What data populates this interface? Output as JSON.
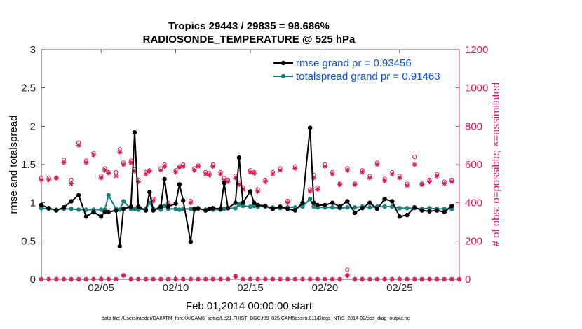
{
  "chart_data": {
    "type": "line",
    "title_line1": "Tropics 29443 / 29835 = 98.686%",
    "title_line2": "RADIOSONDE_TEMPERATURE @ 525 hPa",
    "xlabel": "Feb.01,2014 00:00:00 start",
    "ylabel_left": "rmse and totalspread",
    "ylabel_right": "# of obs: o=possible; ×=assimilated",
    "xlim": [
      1,
      29
    ],
    "ylim_left": [
      0,
      3
    ],
    "ylim_right": [
      0,
      1200
    ],
    "x_ticks": [
      5,
      10,
      15,
      20,
      25
    ],
    "x_tick_labels": [
      "02/05",
      "02/10",
      "02/15",
      "02/20",
      "02/25"
    ],
    "y_left_ticks": [
      0,
      0.5,
      1,
      1.5,
      2,
      2.5,
      3
    ],
    "y_left_tick_labels": [
      "0",
      "0.5",
      "1",
      "1.5",
      "2",
      "2.5",
      "3"
    ],
    "y_right_ticks": [
      0,
      200,
      400,
      600,
      800,
      1000,
      1200
    ],
    "y_right_tick_labels": [
      "0",
      "200",
      "400",
      "600",
      "800",
      "1000",
      "1200"
    ],
    "legend": [
      {
        "name": "rmse grand pr = 0.93456",
        "color": "#000000"
      },
      {
        "name": "totalspread grand pr = 0.91463",
        "color": "#1a8080"
      }
    ],
    "colors": {
      "rmse": "#000000",
      "spread": "#1a8080",
      "obs": "#d6185a"
    },
    "x": [
      1.0,
      1.5,
      2.0,
      2.5,
      3.0,
      3.5,
      4.0,
      4.5,
      5.0,
      5.25,
      5.5,
      6.0,
      6.25,
      6.5,
      7.0,
      7.25,
      7.5,
      8.0,
      8.25,
      8.5,
      9.0,
      9.25,
      9.5,
      10.0,
      10.25,
      10.5,
      11.0,
      11.25,
      11.5,
      12.0,
      12.25,
      12.5,
      13.0,
      13.25,
      13.5,
      14.0,
      14.25,
      14.5,
      15.0,
      15.25,
      15.5,
      16.0,
      16.5,
      17.0,
      17.5,
      18.0,
      18.5,
      19.0,
      19.25,
      19.5,
      20.0,
      20.5,
      21.0,
      21.5,
      22.0,
      22.5,
      23.0,
      23.5,
      24.0,
      24.5,
      25.0,
      25.5,
      26.0,
      26.5,
      27.0,
      27.5,
      28.0,
      28.5
    ],
    "series": [
      {
        "name": "rmse",
        "values": [
          0.97,
          0.93,
          0.9,
          0.94,
          1.02,
          1.1,
          0.82,
          0.88,
          0.82,
          0.88,
          0.88,
          0.9,
          0.43,
          0.92,
          0.95,
          1.92,
          0.95,
          0.9,
          1.14,
          0.9,
          0.95,
          1.31,
          0.95,
          0.99,
          1.24,
          1.03,
          0.49,
          0.92,
          0.93,
          0.9,
          0.92,
          0.93,
          0.92,
          1.26,
          0.93,
          1.0,
          1.59,
          1.0,
          1.15,
          1.0,
          0.97,
          0.96,
          0.92,
          0.95,
          0.92,
          0.9,
          1.0,
          1.98,
          1.0,
          0.97,
          0.97,
          1.0,
          0.95,
          1.02,
          0.87,
          0.93,
          1.0,
          0.92,
          1.05,
          1.02,
          0.82,
          0.84,
          0.94,
          0.9,
          0.89,
          0.9,
          0.88,
          0.96
        ]
      },
      {
        "name": "totalspread",
        "values": [
          0.93,
          0.92,
          0.91,
          0.92,
          0.92,
          0.91,
          0.91,
          0.91,
          0.91,
          0.91,
          1.1,
          0.92,
          0.91,
          1.02,
          0.92,
          0.92,
          0.91,
          0.92,
          1.0,
          0.92,
          0.91,
          0.96,
          0.92,
          0.92,
          0.91,
          0.92,
          0.92,
          0.91,
          0.92,
          0.91,
          0.92,
          0.91,
          0.91,
          0.92,
          0.93,
          0.93,
          0.98,
          0.96,
          0.95,
          0.96,
          0.95,
          0.95,
          0.94,
          0.93,
          0.94,
          0.94,
          0.95,
          1.05,
          0.95,
          0.94,
          0.94,
          0.94,
          0.93,
          0.94,
          0.94,
          0.95,
          0.94,
          0.95,
          0.95,
          0.95,
          0.93,
          0.93,
          0.93,
          0.92,
          0.93,
          0.92,
          0.92,
          0.92
        ]
      },
      {
        "name": "obs_possible",
        "values": [
          530,
          530,
          530,
          625,
          520,
          715,
          620,
          660,
          540,
          580,
          560,
          560,
          680,
          610,
          620,
          575,
          520,
          560,
          570,
          420,
          580,
          600,
          400,
          570,
          590,
          600,
          410,
          580,
          595,
          560,
          555,
          600,
          560,
          530,
          520,
          540,
          505,
          480,
          570,
          560,
          470,
          520,
          560,
          580,
          410,
          590,
          400,
          470,
          545,
          480,
          600,
          560,
          500,
          580,
          500,
          570,
          540,
          610,
          525,
          560,
          540,
          500,
          640,
          500,
          520,
          550,
          510,
          520
        ]
      },
      {
        "name": "obs_assimilated",
        "values": [
          520,
          520,
          530,
          610,
          500,
          700,
          610,
          650,
          530,
          570,
          555,
          540,
          665,
          600,
          610,
          565,
          510,
          550,
          565,
          410,
          570,
          590,
          390,
          560,
          585,
          590,
          400,
          570,
          590,
          550,
          545,
          590,
          550,
          520,
          510,
          530,
          495,
          470,
          560,
          555,
          460,
          510,
          550,
          570,
          400,
          580,
          390,
          460,
          530,
          470,
          590,
          550,
          495,
          570,
          495,
          560,
          530,
          600,
          515,
          550,
          530,
          490,
          600,
          495,
          510,
          540,
          500,
          510
        ]
      }
    ],
    "obs_zero_x": [
      1,
      1.5,
      2,
      2.5,
      3,
      3.5,
      4,
      4.5,
      5,
      5.5,
      6,
      6.5,
      7,
      7.5,
      8,
      8.5,
      9,
      9.5,
      10,
      10.5,
      11,
      11.5,
      12,
      12.5,
      13,
      13.5,
      14,
      14.5,
      15,
      15.5,
      16,
      16.5,
      17,
      17.5,
      18,
      18.5,
      19,
      19.5,
      20,
      20.5,
      21,
      21.5,
      22,
      22.5,
      23,
      23.5,
      24,
      24.5,
      25,
      25.5,
      26,
      26.5,
      27,
      27.5,
      28,
      28.5,
      29
    ],
    "obs_zero_values": [
      0,
      0,
      0,
      0,
      0,
      0,
      0,
      0,
      0,
      0,
      0,
      20,
      0,
      0,
      0,
      0,
      0,
      0,
      0,
      0,
      0,
      0,
      0,
      0,
      0,
      0,
      15,
      0,
      0,
      0,
      0,
      0,
      0,
      0,
      0,
      0,
      0,
      0,
      0,
      0,
      0,
      20,
      0,
      0,
      0,
      0,
      0,
      0,
      0,
      0,
      0,
      0,
      0,
      0,
      0,
      0,
      0
    ],
    "obs_zero_special_x": 21.5,
    "obs_zero_special_value": 50
  },
  "footnote": "data file: /Users/raeder/DAI/ATM_forcXX/CAM6_setup/f.e21.FHIST_BGC.f09_025.CAM6assim.011/Diags_NTrS_2014-02/obs_diag_output.nc"
}
